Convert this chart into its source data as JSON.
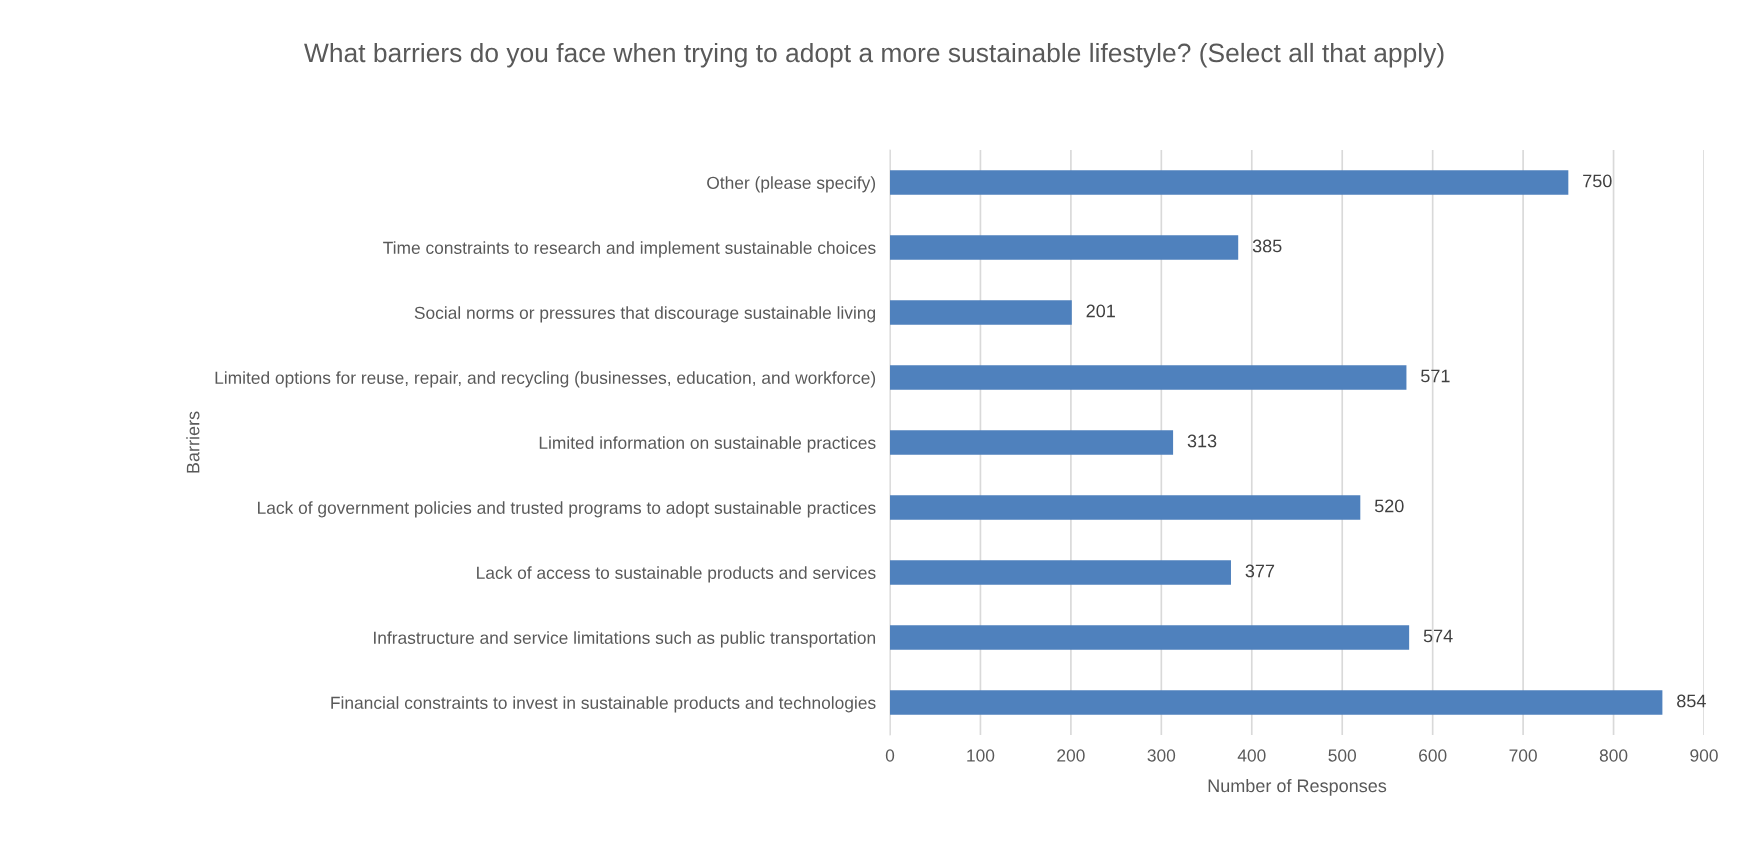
{
  "chart_data": {
    "type": "bar",
    "orientation": "horizontal",
    "title": "What barriers do you face when trying to adopt a more sustainable lifestyle? (Select all that apply)",
    "xlabel": "Number of Responses",
    "ylabel": "Barriers",
    "categories": [
      "Other (please specify)",
      "Time constraints to research and implement sustainable choices",
      "Social norms or pressures that discourage sustainable living",
      "Limited options for reuse, repair, and recycling (businesses, education, and workforce)",
      "Limited information on sustainable practices",
      "Lack of government policies and trusted programs to adopt sustainable practices",
      "Lack of access to sustainable products and services",
      "Infrastructure and service limitations such as public transportation",
      "Financial constraints to invest in sustainable products and technologies"
    ],
    "values": [
      750,
      385,
      201,
      571,
      313,
      520,
      377,
      574,
      854
    ],
    "color": "#4f81bd",
    "xlim": [
      0,
      900
    ],
    "xticks": [
      0,
      100,
      200,
      300,
      400,
      500,
      600,
      700,
      800,
      900
    ],
    "grid": "x",
    "data_labels": true
  }
}
